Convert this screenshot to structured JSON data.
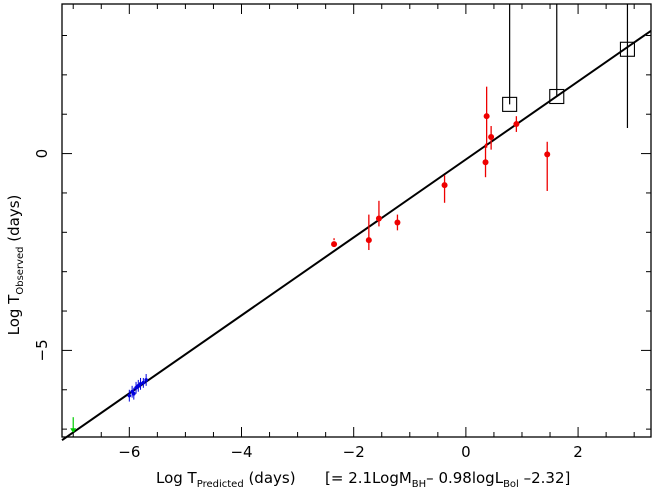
{
  "chart_data": {
    "type": "scatter",
    "xlabel": {
      "main": "Log T",
      "sub": "Predicted",
      "unit": " (days)"
    },
    "ylabel": {
      "main": "Log T",
      "sub": "Observed",
      "unit": " (days)"
    },
    "formula": {
      "p1": "[= 2.1LogM",
      "s1": "BH",
      "p2": "– 0.98logL",
      "s2": "Bol",
      "p3": " –2.32]"
    },
    "xlim": [
      -7.2,
      3.3
    ],
    "ylim": [
      -7.2,
      3.8
    ],
    "x_ticks": [
      -6,
      -4,
      -2,
      0,
      2
    ],
    "x_tick_labels": [
      "−6",
      "−4",
      "−2",
      "0",
      "2"
    ],
    "y_ticks": [
      -5,
      0
    ],
    "y_tick_labels": [
      "−5",
      "0"
    ],
    "fit_line": {
      "x": [
        -7.2,
        3.3
      ],
      "y": [
        -7.28,
        3.12
      ]
    },
    "colors": {
      "red": "#ee0000",
      "blue": "#0000dd",
      "green": "#00cc00",
      "black": "#000000"
    },
    "series": [
      {
        "color": "red",
        "marker": "filled-circle",
        "points": [
          {
            "x": -2.35,
            "y": -2.3,
            "lo": -2.2,
            "hi": -2.15
          },
          {
            "x": -1.73,
            "y": -2.2,
            "lo": -2.45,
            "hi": -1.55
          },
          {
            "x": -1.55,
            "y": -1.65,
            "lo": -1.85,
            "hi": -1.2
          },
          {
            "x": -1.22,
            "y": -1.75,
            "lo": -1.95,
            "hi": -1.55
          },
          {
            "x": -0.38,
            "y": -0.8,
            "lo": -1.25,
            "hi": -0.55
          },
          {
            "x": 0.35,
            "y": -0.22,
            "lo": -0.6,
            "hi": 0.25
          },
          {
            "x": 0.37,
            "y": 0.95,
            "lo": 0.15,
            "hi": 1.7
          },
          {
            "x": 0.45,
            "y": 0.42,
            "lo": 0.1,
            "hi": 0.7
          },
          {
            "x": 0.9,
            "y": 0.75,
            "lo": 0.55,
            "hi": 0.95
          },
          {
            "x": 1.45,
            "y": -0.02,
            "lo": -0.95,
            "hi": 0.3
          }
        ]
      },
      {
        "color": "blue",
        "marker": "small-circle",
        "points": [
          {
            "x": -6.0,
            "y": -6.15,
            "lo": -6.3,
            "hi": -6.0
          },
          {
            "x": -5.95,
            "y": -6.05,
            "lo": -6.2,
            "hi": -5.9
          },
          {
            "x": -5.92,
            "y": -6.1,
            "lo": -6.25,
            "hi": -5.95
          },
          {
            "x": -5.88,
            "y": -5.95,
            "lo": -6.1,
            "hi": -5.8
          },
          {
            "x": -5.84,
            "y": -5.9,
            "lo": -6.05,
            "hi": -5.75
          },
          {
            "x": -5.8,
            "y": -5.85,
            "lo": -6.0,
            "hi": -5.7
          },
          {
            "x": -5.75,
            "y": -5.82,
            "lo": -5.95,
            "hi": -5.7
          },
          {
            "x": -5.7,
            "y": -5.75,
            "lo": -5.9,
            "hi": -5.6
          }
        ]
      },
      {
        "color": "black",
        "marker": "open-square",
        "points": [
          {
            "x": 0.78,
            "y": 1.25,
            "lo": 1.25,
            "hi": 3.8
          },
          {
            "x": 1.62,
            "y": 1.45,
            "lo": 1.45,
            "hi": 3.8
          },
          {
            "x": 2.88,
            "y": 2.65,
            "lo": 0.65,
            "hi": 3.8
          }
        ]
      }
    ],
    "upper_limit": {
      "color": "green",
      "x": -7.0,
      "y": -6.9
    }
  }
}
